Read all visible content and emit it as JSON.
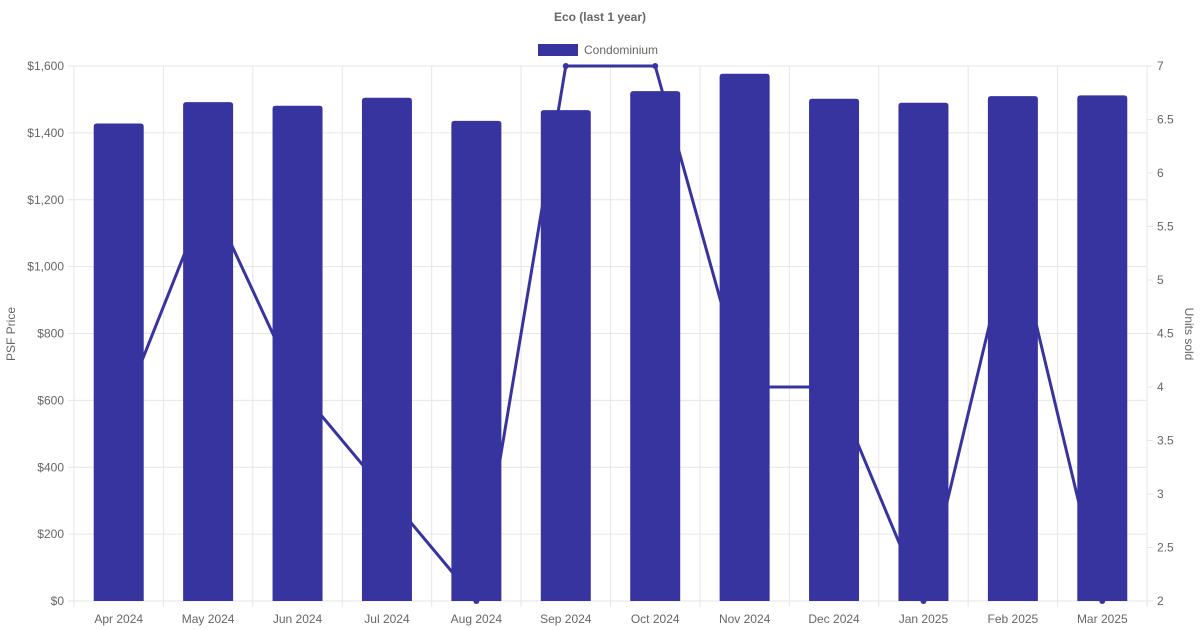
{
  "chart_data": {
    "type": "bar",
    "title": "Eco (last 1 year)",
    "categories": [
      "Apr 2024",
      "May 2024",
      "Jun 2024",
      "Jul 2024",
      "Aug 2024",
      "Sep 2024",
      "Oct 2024",
      "Nov 2024",
      "Dec 2024",
      "Jan 2025",
      "Feb 2025",
      "Mar 2025"
    ],
    "series": [
      {
        "name": "Condominium",
        "type": "bar",
        "axis": "left",
        "values": [
          1428,
          1492,
          1481,
          1505,
          1436,
          1468,
          1525,
          1577,
          1502,
          1490,
          1510,
          1512
        ]
      },
      {
        "type": "line",
        "axis": "right",
        "values": [
          3.7,
          5.8,
          4.0,
          3.0,
          2.0,
          7.0,
          7.0,
          4.0,
          4.0,
          2.0,
          5.5,
          2.0
        ]
      }
    ],
    "ylabel": "PSF Price",
    "y2label": "Units sold",
    "ylim": [
      0,
      1600
    ],
    "y2lim": [
      2,
      7
    ],
    "yticks": [
      "$0",
      "$200",
      "$400",
      "$600",
      "$800",
      "$1,000",
      "$1,200",
      "$1,400",
      "$1,600"
    ],
    "y2ticks": [
      "2",
      "2.5",
      "3",
      "3.5",
      "4",
      "4.5",
      "5",
      "5.5",
      "6",
      "6.5",
      "7"
    ],
    "grid": true,
    "legend_position": "top",
    "color": "#3734a0"
  }
}
